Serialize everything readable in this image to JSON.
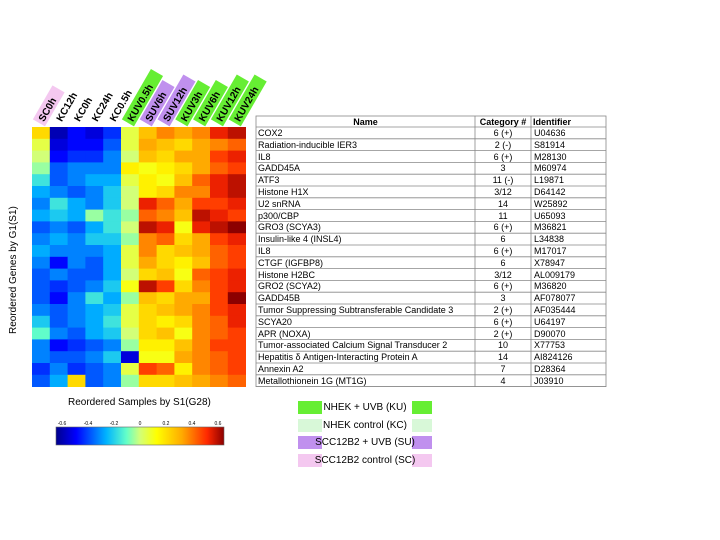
{
  "chart_data": {
    "type": "heatmap",
    "xlabel": "Reordered Samples by S1(G28)",
    "ylabel": "Reordered Genes by G1(S1)",
    "samples": [
      {
        "label": "SC0h",
        "group": "SC"
      },
      {
        "label": "KC12h",
        "group": "none"
      },
      {
        "label": "KC0h",
        "group": "none"
      },
      {
        "label": "KC24h",
        "group": "none"
      },
      {
        "label": "KC0.5h",
        "group": "none"
      },
      {
        "label": "KUV0.5h",
        "group": "KU"
      },
      {
        "label": "SUV6h",
        "group": "SU"
      },
      {
        "label": "SUV12h",
        "group": "SU"
      },
      {
        "label": "KUV3h",
        "group": "KU"
      },
      {
        "label": "KUV6h",
        "group": "KU"
      },
      {
        "label": "KUV12h",
        "group": "KU"
      },
      {
        "label": "KUV24h",
        "group": "KU"
      }
    ],
    "genes": [
      {
        "name": "COX2",
        "category": "6 (+)",
        "identifier": "U04636"
      },
      {
        "name": "Radiation-inducible IER3",
        "category": "2 (-)",
        "identifier": "S81914"
      },
      {
        "name": "IL8",
        "category": "6 (+)",
        "identifier": "M28130"
      },
      {
        "name": "GADD45A",
        "category": "3",
        "identifier": "M60974"
      },
      {
        "name": "ATF3",
        "category": "11 (-)",
        "identifier": "L19871"
      },
      {
        "name": "Histone H1X",
        "category": "3/12",
        "identifier": "D64142"
      },
      {
        "name": "U2 snRNA",
        "category": "14",
        "identifier": "W25892"
      },
      {
        "name": "p300/CBP",
        "category": "11",
        "identifier": "U65093"
      },
      {
        "name": "GRO3 (SCYA3)",
        "category": "6 (+)",
        "identifier": "M36821"
      },
      {
        "name": "Insulin-like 4 (INSL4)",
        "category": "6",
        "identifier": "L34838"
      },
      {
        "name": "IL8",
        "category": "6 (+)",
        "identifier": "M17017"
      },
      {
        "name": "CTGF (IGFBP8)",
        "category": "6",
        "identifier": "X78947"
      },
      {
        "name": "Histone H2BC",
        "category": "3/12",
        "identifier": "AL009179"
      },
      {
        "name": "GRO2 (SCYA2)",
        "category": "6 (+)",
        "identifier": "M36820"
      },
      {
        "name": "GADD45B",
        "category": "3",
        "identifier": "AF078077"
      },
      {
        "name": "Tumor Suppressing Subtransferable Candidate 3",
        "category": "2 (+)",
        "identifier": "AF035444"
      },
      {
        "name": "SCYA20",
        "category": "6 (+)",
        "identifier": "U64197"
      },
      {
        "name": "APR (NOXA)",
        "category": "2 (+)",
        "identifier": "D90070"
      },
      {
        "name": "Tumor-associated Calcium Signal Transducer 2",
        "category": "10",
        "identifier": "X77753"
      },
      {
        "name": "Hepatitis δ Antigen-Interacting Protein A",
        "category": "14",
        "identifier": "AI824126"
      },
      {
        "name": "Annexin A2",
        "category": "7",
        "identifier": "D28364"
      },
      {
        "name": "Metallothionein 1G (MT1G)",
        "category": "4",
        "identifier": "J03910"
      }
    ],
    "values": [
      [
        0.2,
        -0.55,
        -0.45,
        -0.5,
        -0.4,
        0.05,
        0.25,
        0.35,
        0.3,
        0.35,
        0.5,
        0.55
      ],
      [
        0.05,
        -0.5,
        -0.45,
        -0.45,
        -0.35,
        0.05,
        0.3,
        0.25,
        0.2,
        0.3,
        0.35,
        0.4
      ],
      [
        0.0,
        -0.45,
        -0.4,
        -0.4,
        -0.3,
        0.0,
        0.25,
        0.2,
        0.3,
        0.3,
        0.45,
        0.5
      ],
      [
        -0.05,
        -0.35,
        -0.3,
        -0.3,
        -0.3,
        0.15,
        0.1,
        0.15,
        0.2,
        0.3,
        0.4,
        0.45
      ],
      [
        -0.15,
        -0.35,
        -0.3,
        -0.25,
        -0.25,
        0.05,
        0.15,
        0.1,
        0.25,
        0.4,
        0.5,
        0.55
      ],
      [
        -0.25,
        -0.3,
        -0.35,
        -0.3,
        -0.2,
        0.0,
        0.15,
        0.2,
        0.35,
        0.35,
        0.5,
        0.55
      ],
      [
        -0.3,
        -0.15,
        -0.25,
        -0.3,
        -0.2,
        0.0,
        0.5,
        0.4,
        0.3,
        0.45,
        0.45,
        0.5
      ],
      [
        -0.25,
        -0.2,
        -0.25,
        -0.05,
        -0.15,
        -0.05,
        0.4,
        0.35,
        0.25,
        0.55,
        0.5,
        0.45
      ],
      [
        -0.35,
        -0.3,
        -0.35,
        -0.25,
        -0.15,
        0.0,
        0.55,
        0.5,
        0.1,
        0.5,
        0.55,
        0.6
      ],
      [
        -0.3,
        -0.25,
        -0.3,
        -0.2,
        -0.2,
        -0.05,
        0.35,
        0.4,
        0.2,
        0.3,
        0.45,
        0.5
      ],
      [
        -0.25,
        -0.3,
        -0.3,
        -0.3,
        -0.25,
        0.05,
        0.35,
        0.2,
        0.25,
        0.3,
        0.4,
        0.45
      ],
      [
        -0.3,
        -0.45,
        -0.3,
        -0.35,
        -0.25,
        0.05,
        0.3,
        0.2,
        0.15,
        0.25,
        0.4,
        0.45
      ],
      [
        -0.35,
        -0.3,
        -0.35,
        -0.35,
        -0.25,
        0.0,
        0.2,
        0.25,
        0.1,
        0.4,
        0.45,
        0.5
      ],
      [
        -0.35,
        -0.4,
        -0.35,
        -0.3,
        -0.2,
        0.1,
        0.55,
        0.45,
        0.2,
        0.35,
        0.45,
        0.5
      ],
      [
        -0.35,
        -0.45,
        -0.3,
        -0.15,
        -0.25,
        -0.05,
        0.25,
        0.2,
        0.3,
        0.3,
        0.45,
        0.6
      ],
      [
        -0.3,
        -0.35,
        -0.3,
        -0.25,
        -0.2,
        0.05,
        0.2,
        0.25,
        0.3,
        0.35,
        0.45,
        0.5
      ],
      [
        -0.2,
        -0.35,
        -0.3,
        -0.25,
        -0.15,
        0.05,
        0.2,
        0.15,
        0.2,
        0.35,
        0.4,
        0.5
      ],
      [
        -0.1,
        -0.3,
        -0.35,
        -0.25,
        -0.2,
        0.0,
        0.2,
        0.25,
        0.1,
        0.35,
        0.4,
        0.45
      ],
      [
        -0.3,
        -0.45,
        -0.4,
        -0.35,
        -0.3,
        -0.05,
        0.15,
        0.15,
        0.25,
        0.35,
        0.45,
        0.45
      ],
      [
        -0.3,
        -0.35,
        -0.35,
        -0.3,
        -0.2,
        -0.5,
        0.1,
        0.1,
        0.3,
        0.35,
        0.4,
        0.45
      ],
      [
        -0.4,
        -0.3,
        -0.4,
        -0.35,
        -0.3,
        0.05,
        0.45,
        0.4,
        0.15,
        0.35,
        0.4,
        0.45
      ],
      [
        -0.35,
        -0.25,
        0.2,
        -0.35,
        -0.3,
        -0.05,
        0.2,
        0.2,
        0.25,
        0.3,
        0.35,
        0.4
      ]
    ],
    "table_headers": [
      "Name",
      "Category #",
      "Identifier"
    ],
    "colorbar": {
      "min": -0.6,
      "max": 0.6,
      "ticks": [
        -0.6,
        -0.4,
        -0.2,
        0,
        0.2,
        0.4,
        0.6
      ]
    },
    "legend": [
      {
        "label": "NHEK + UVB (KU)",
        "color": "#66ee33",
        "group": "KU"
      },
      {
        "label": "NHEK control (KC)",
        "color": "#d8f8d8",
        "group": "KC"
      },
      {
        "label": "SCC12B2 + UVB (SU)",
        "color": "#c090ee",
        "group": "SU"
      },
      {
        "label": "SCC12B2 control (SC)",
        "color": "#f4c8f0",
        "group": "SC"
      }
    ]
  }
}
